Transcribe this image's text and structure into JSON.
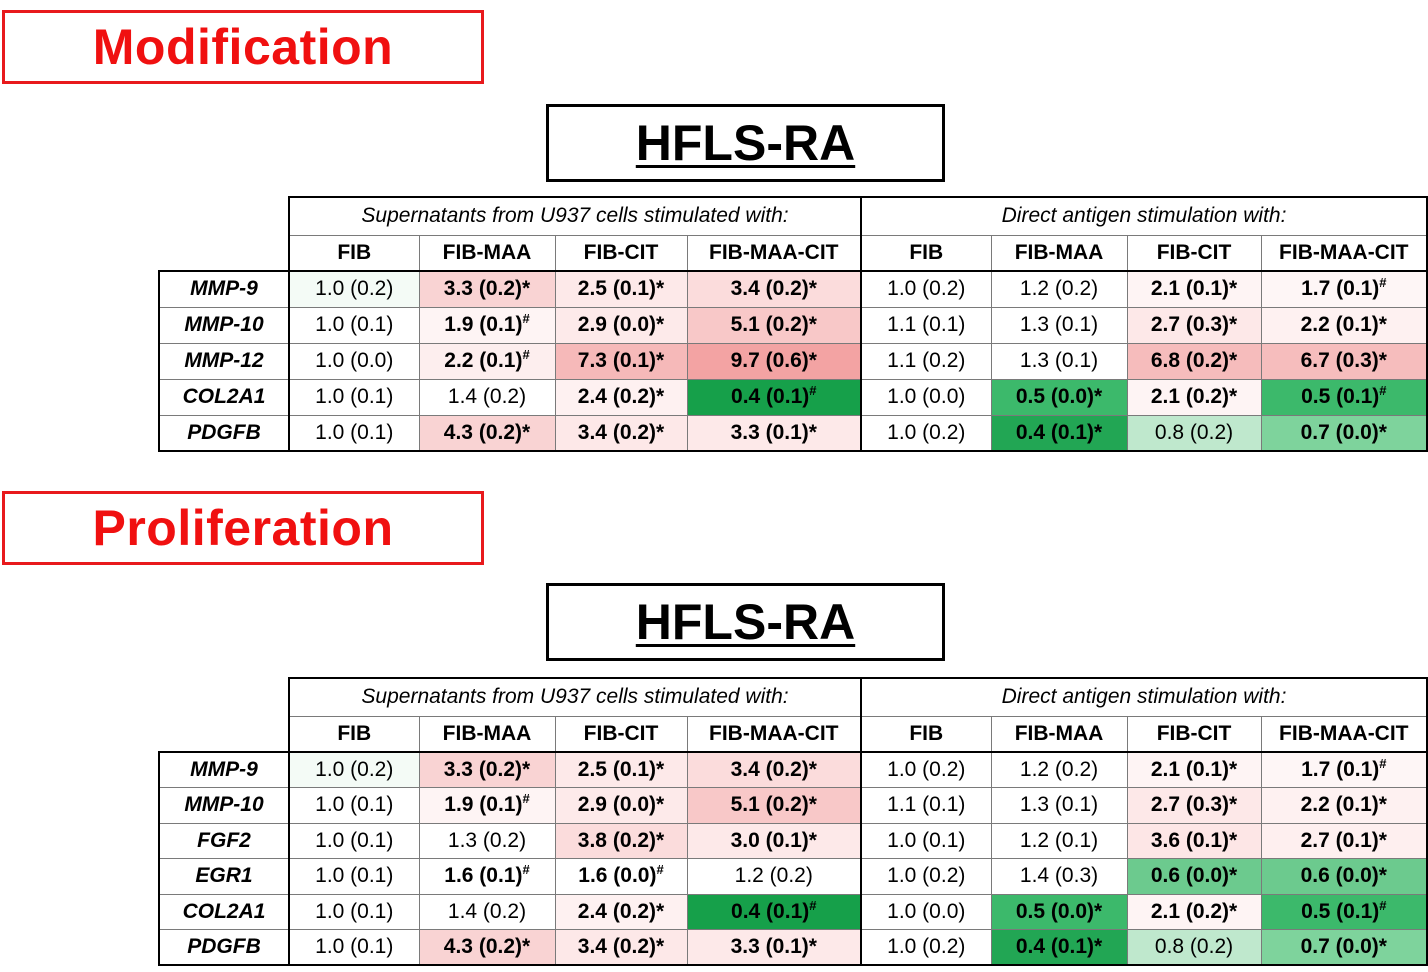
{
  "sections": [
    {
      "title": "Modification",
      "panel_title": "HFLS-RA",
      "group_headers": [
        "Supernatants from U937 cells stimulated with:",
        "Direct antigen stimulation with:"
      ],
      "columns": [
        "FIB",
        "FIB-MAA",
        "FIB-CIT",
        "FIB-MAA-CIT",
        "FIB",
        "FIB-MAA",
        "FIB-CIT",
        "FIB-MAA-CIT"
      ],
      "rows": [
        {
          "gene": "MMP-9",
          "cells": [
            {
              "v": "1.0 (0.2)",
              "bold": false,
              "sup": "",
              "bg": "#f4fbf6"
            },
            {
              "v": "3.3 (0.2)*",
              "bold": true,
              "sup": "",
              "bg": "#f9d3d3"
            },
            {
              "v": "2.5 (0.1)*",
              "bold": true,
              "sup": "",
              "bg": "#fde9e9"
            },
            {
              "v": "3.4 (0.2)*",
              "bold": true,
              "sup": "",
              "bg": "#fbdcdc"
            },
            {
              "v": "1.0 (0.2)",
              "bold": false,
              "sup": "",
              "bg": "#ffffff"
            },
            {
              "v": "1.2 (0.2)",
              "bold": false,
              "sup": "",
              "bg": "#ffffff"
            },
            {
              "v": "2.1 (0.1)*",
              "bold": true,
              "sup": "",
              "bg": "#fef4f4"
            },
            {
              "v": "1.7 (0.1)",
              "bold": true,
              "sup": "#",
              "bg": "#fef6f6"
            }
          ]
        },
        {
          "gene": "MMP-10",
          "cells": [
            {
              "v": "1.0 (0.1)",
              "bold": false,
              "sup": "",
              "bg": "#ffffff"
            },
            {
              "v": "1.9 (0.1)",
              "bold": true,
              "sup": "#",
              "bg": "#fef4f4"
            },
            {
              "v": "2.9 (0.0)*",
              "bold": true,
              "sup": "",
              "bg": "#fdeaea"
            },
            {
              "v": "5.1 (0.2)*",
              "bold": true,
              "sup": "",
              "bg": "#f8c8c8"
            },
            {
              "v": "1.1 (0.1)",
              "bold": false,
              "sup": "",
              "bg": "#ffffff"
            },
            {
              "v": "1.3 (0.1)",
              "bold": false,
              "sup": "",
              "bg": "#ffffff"
            },
            {
              "v": "2.7 (0.3)*",
              "bold": true,
              "sup": "",
              "bg": "#fde8e8"
            },
            {
              "v": "2.2 (0.1)*",
              "bold": true,
              "sup": "",
              "bg": "#fef1f1"
            }
          ]
        },
        {
          "gene": "MMP-12",
          "cells": [
            {
              "v": "1.0 (0.0)",
              "bold": false,
              "sup": "",
              "bg": "#ffffff"
            },
            {
              "v": "2.2 (0.1)",
              "bold": true,
              "sup": "#",
              "bg": "#fdeeee"
            },
            {
              "v": "7.3 (0.1)*",
              "bold": true,
              "sup": "",
              "bg": "#f6b9b9"
            },
            {
              "v": "9.7 (0.6)*",
              "bold": true,
              "sup": "",
              "bg": "#f3a3a3"
            },
            {
              "v": "1.1 (0.2)",
              "bold": false,
              "sup": "",
              "bg": "#ffffff"
            },
            {
              "v": "1.3 (0.1)",
              "bold": false,
              "sup": "",
              "bg": "#ffffff"
            },
            {
              "v": "6.8 (0.2)*",
              "bold": true,
              "sup": "",
              "bg": "#f6bcbc"
            },
            {
              "v": "6.7 (0.3)*",
              "bold": true,
              "sup": "",
              "bg": "#f6bdbd"
            }
          ]
        },
        {
          "gene": "COL2A1",
          "cells": [
            {
              "v": "1.0 (0.1)",
              "bold": false,
              "sup": "",
              "bg": "#ffffff"
            },
            {
              "v": "1.4 (0.2)",
              "bold": false,
              "sup": "",
              "bg": "#ffffff"
            },
            {
              "v": "2.4 (0.2)*",
              "bold": true,
              "sup": "",
              "bg": "#fef1f1"
            },
            {
              "v": "0.4 (0.1)",
              "bold": true,
              "sup": "#",
              "bg": "#16a04a"
            },
            {
              "v": "1.0 (0.0)",
              "bold": false,
              "sup": "",
              "bg": "#ffffff"
            },
            {
              "v": "0.5 (0.0)*",
              "bold": true,
              "sup": "",
              "bg": "#3cb96b"
            },
            {
              "v": "2.1 (0.2)*",
              "bold": true,
              "sup": "",
              "bg": "#fef4f4"
            },
            {
              "v": "0.5 (0.1)",
              "bold": true,
              "sup": "#",
              "bg": "#3cb96b"
            }
          ]
        },
        {
          "gene": "PDGFB",
          "cells": [
            {
              "v": "1.0 (0.1)",
              "bold": false,
              "sup": "",
              "bg": "#ffffff"
            },
            {
              "v": "4.3 (0.2)*",
              "bold": true,
              "sup": "",
              "bg": "#f9d3d3"
            },
            {
              "v": "3.4 (0.2)*",
              "bold": true,
              "sup": "",
              "bg": "#fde8e8"
            },
            {
              "v": "3.3 (0.1)*",
              "bold": true,
              "sup": "",
              "bg": "#fde9e9"
            },
            {
              "v": "1.0 (0.2)",
              "bold": false,
              "sup": "",
              "bg": "#ffffff"
            },
            {
              "v": "0.4 (0.1)*",
              "bold": true,
              "sup": "",
              "bg": "#22a654"
            },
            {
              "v": "0.8 (0.2)",
              "bold": false,
              "sup": "",
              "bg": "#bfe8cd"
            },
            {
              "v": "0.7 (0.0)*",
              "bold": true,
              "sup": "",
              "bg": "#7ed39c"
            }
          ]
        }
      ]
    },
    {
      "title": "Proliferation",
      "panel_title": "HFLS-RA",
      "group_headers": [
        "Supernatants from U937 cells stimulated with:",
        "Direct antigen stimulation with:"
      ],
      "columns": [
        "FIB",
        "FIB-MAA",
        "FIB-CIT",
        "FIB-MAA-CIT",
        "FIB",
        "FIB-MAA",
        "FIB-CIT",
        "FIB-MAA-CIT"
      ],
      "rows": [
        {
          "gene": "MMP-9",
          "cells": [
            {
              "v": "1.0 (0.2)",
              "bold": false,
              "sup": "",
              "bg": "#f4fbf6"
            },
            {
              "v": "3.3 (0.2)*",
              "bold": true,
              "sup": "",
              "bg": "#f9d3d3"
            },
            {
              "v": "2.5 (0.1)*",
              "bold": true,
              "sup": "",
              "bg": "#fde9e9"
            },
            {
              "v": "3.4 (0.2)*",
              "bold": true,
              "sup": "",
              "bg": "#fbdcdc"
            },
            {
              "v": "1.0 (0.2)",
              "bold": false,
              "sup": "",
              "bg": "#ffffff"
            },
            {
              "v": "1.2 (0.2)",
              "bold": false,
              "sup": "",
              "bg": "#ffffff"
            },
            {
              "v": "2.1 (0.1)*",
              "bold": true,
              "sup": "",
              "bg": "#fef4f4"
            },
            {
              "v": "1.7 (0.1)",
              "bold": true,
              "sup": "#",
              "bg": "#fef6f6"
            }
          ]
        },
        {
          "gene": "MMP-10",
          "cells": [
            {
              "v": "1.0 (0.1)",
              "bold": false,
              "sup": "",
              "bg": "#ffffff"
            },
            {
              "v": "1.9 (0.1)",
              "bold": true,
              "sup": "#",
              "bg": "#fef4f4"
            },
            {
              "v": "2.9 (0.0)*",
              "bold": true,
              "sup": "",
              "bg": "#fdeaea"
            },
            {
              "v": "5.1 (0.2)*",
              "bold": true,
              "sup": "",
              "bg": "#f8c8c8"
            },
            {
              "v": "1.1 (0.1)",
              "bold": false,
              "sup": "",
              "bg": "#ffffff"
            },
            {
              "v": "1.3 (0.1)",
              "bold": false,
              "sup": "",
              "bg": "#ffffff"
            },
            {
              "v": "2.7 (0.3)*",
              "bold": true,
              "sup": "",
              "bg": "#fde8e8"
            },
            {
              "v": "2.2 (0.1)*",
              "bold": true,
              "sup": "",
              "bg": "#fef1f1"
            }
          ]
        },
        {
          "gene": "FGF2",
          "cells": [
            {
              "v": "1.0 (0.1)",
              "bold": false,
              "sup": "",
              "bg": "#ffffff"
            },
            {
              "v": "1.3 (0.2)",
              "bold": false,
              "sup": "",
              "bg": "#ffffff"
            },
            {
              "v": "3.8 (0.2)*",
              "bold": true,
              "sup": "",
              "bg": "#fbdcdc"
            },
            {
              "v": "3.0 (0.1)*",
              "bold": true,
              "sup": "",
              "bg": "#fde9e9"
            },
            {
              "v": "1.0 (0.1)",
              "bold": false,
              "sup": "",
              "bg": "#ffffff"
            },
            {
              "v": "1.2 (0.1)",
              "bold": false,
              "sup": "",
              "bg": "#ffffff"
            },
            {
              "v": "3.6 (0.1)*",
              "bold": true,
              "sup": "",
              "bg": "#fde6e6"
            },
            {
              "v": "2.7 (0.1)*",
              "bold": true,
              "sup": "",
              "bg": "#feefef"
            }
          ]
        },
        {
          "gene": "EGR1",
          "cells": [
            {
              "v": "1.0 (0.1)",
              "bold": false,
              "sup": "",
              "bg": "#ffffff"
            },
            {
              "v": "1.6 (0.1)",
              "bold": true,
              "sup": "#",
              "bg": "#ffffff"
            },
            {
              "v": "1.6 (0.0)",
              "bold": true,
              "sup": "#",
              "bg": "#ffffff"
            },
            {
              "v": "1.2 (0.2)",
              "bold": false,
              "sup": "",
              "bg": "#ffffff"
            },
            {
              "v": "1.0 (0.2)",
              "bold": false,
              "sup": "",
              "bg": "#ffffff"
            },
            {
              "v": "1.4 (0.3)",
              "bold": false,
              "sup": "",
              "bg": "#ffffff"
            },
            {
              "v": "0.6 (0.0)*",
              "bold": true,
              "sup": "",
              "bg": "#6cca8e"
            },
            {
              "v": "0.6 (0.0)*",
              "bold": true,
              "sup": "",
              "bg": "#6cca8e"
            }
          ]
        },
        {
          "gene": "COL2A1",
          "cells": [
            {
              "v": "1.0 (0.1)",
              "bold": false,
              "sup": "",
              "bg": "#ffffff"
            },
            {
              "v": "1.4 (0.2)",
              "bold": false,
              "sup": "",
              "bg": "#ffffff"
            },
            {
              "v": "2.4 (0.2)*",
              "bold": true,
              "sup": "",
              "bg": "#fef1f1"
            },
            {
              "v": "0.4 (0.1)",
              "bold": true,
              "sup": "#",
              "bg": "#16a04a"
            },
            {
              "v": "1.0 (0.0)",
              "bold": false,
              "sup": "",
              "bg": "#ffffff"
            },
            {
              "v": "0.5 (0.0)*",
              "bold": true,
              "sup": "",
              "bg": "#3cb96b"
            },
            {
              "v": "2.1 (0.2)*",
              "bold": true,
              "sup": "",
              "bg": "#fef4f4"
            },
            {
              "v": "0.5 (0.1)",
              "bold": true,
              "sup": "#",
              "bg": "#3cb96b"
            }
          ]
        },
        {
          "gene": "PDGFB",
          "cells": [
            {
              "v": "1.0 (0.1)",
              "bold": false,
              "sup": "",
              "bg": "#ffffff"
            },
            {
              "v": "4.3 (0.2)*",
              "bold": true,
              "sup": "",
              "bg": "#f9d3d3"
            },
            {
              "v": "3.4 (0.2)*",
              "bold": true,
              "sup": "",
              "bg": "#fde8e8"
            },
            {
              "v": "3.3 (0.1)*",
              "bold": true,
              "sup": "",
              "bg": "#fde9e9"
            },
            {
              "v": "1.0 (0.2)",
              "bold": false,
              "sup": "",
              "bg": "#ffffff"
            },
            {
              "v": "0.4 (0.1)*",
              "bold": true,
              "sup": "",
              "bg": "#22a654"
            },
            {
              "v": "0.8 (0.2)",
              "bold": false,
              "sup": "",
              "bg": "#bfe8cd"
            },
            {
              "v": "0.7 (0.0)*",
              "bold": true,
              "sup": "",
              "bg": "#7ed39c"
            }
          ]
        }
      ]
    }
  ]
}
